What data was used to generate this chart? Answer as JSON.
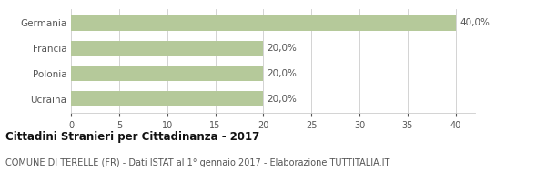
{
  "categories": [
    "Germania",
    "Francia",
    "Polonia",
    "Ucraina"
  ],
  "values": [
    40.0,
    20.0,
    20.0,
    20.0
  ],
  "bar_color": "#b5c99a",
  "value_labels": [
    "40,0%",
    "20,0%",
    "20,0%",
    "20,0%"
  ],
  "xlim": [
    0,
    42
  ],
  "xticks": [
    0,
    5,
    10,
    15,
    20,
    25,
    30,
    35,
    40
  ],
  "title": "Cittadini Stranieri per Cittadinanza - 2017",
  "subtitle": "COMUNE DI TERELLE (FR) - Dati ISTAT al 1° gennaio 2017 - Elaborazione TUTTITALIA.IT",
  "title_fontsize": 8.5,
  "subtitle_fontsize": 7.0,
  "label_fontsize": 7.5,
  "tick_fontsize": 7.0,
  "background_color": "#ffffff",
  "grid_color": "#cccccc",
  "text_color": "#555555",
  "bar_height": 0.6
}
